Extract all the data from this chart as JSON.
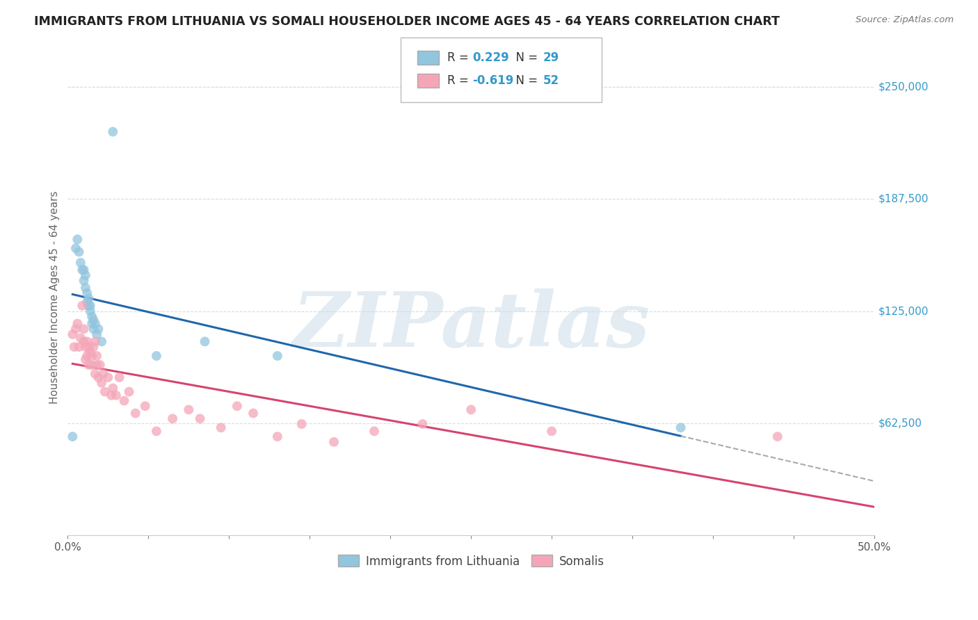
{
  "title": "IMMIGRANTS FROM LITHUANIA VS SOMALI HOUSEHOLDER INCOME AGES 45 - 64 YEARS CORRELATION CHART",
  "source": "Source: ZipAtlas.com",
  "ylabel": "Householder Income Ages 45 - 64 years",
  "xlim": [
    0.0,
    0.5
  ],
  "ylim": [
    0,
    265000
  ],
  "yticks": [
    0,
    62500,
    125000,
    187500,
    250000
  ],
  "ytick_labels": [
    "",
    "$62,500",
    "$125,000",
    "$187,500",
    "$250,000"
  ],
  "xticks": [
    0.0,
    0.05,
    0.1,
    0.15,
    0.2,
    0.25,
    0.3,
    0.35,
    0.4,
    0.45,
    0.5
  ],
  "xtick_labels": [
    "0.0%",
    "",
    "",
    "",
    "",
    "",
    "",
    "",
    "",
    "",
    "50.0%"
  ],
  "legend_label1": "Immigrants from Lithuania",
  "legend_label2": "Somalis",
  "blue_color": "#92c5de",
  "pink_color": "#f4a6b8",
  "line_blue": "#2166ac",
  "line_pink": "#d6446e",
  "line_dash_color": "#aaaaaa",
  "watermark": "ZIPatlas",
  "watermark_color": "#ccdde8",
  "legend_R1": "0.229",
  "legend_N1": "29",
  "legend_R2": "-0.619",
  "legend_N2": "52",
  "blue_points_x": [
    0.003,
    0.005,
    0.006,
    0.007,
    0.008,
    0.009,
    0.01,
    0.01,
    0.011,
    0.011,
    0.012,
    0.012,
    0.013,
    0.013,
    0.014,
    0.014,
    0.015,
    0.015,
    0.016,
    0.016,
    0.017,
    0.018,
    0.019,
    0.021,
    0.028,
    0.055,
    0.085,
    0.13,
    0.38
  ],
  "blue_points_y": [
    55000,
    160000,
    165000,
    158000,
    152000,
    148000,
    148000,
    142000,
    145000,
    138000,
    135000,
    130000,
    132000,
    128000,
    128000,
    125000,
    122000,
    118000,
    120000,
    115000,
    118000,
    112000,
    115000,
    108000,
    225000,
    100000,
    108000,
    100000,
    60000
  ],
  "pink_points_x": [
    0.003,
    0.004,
    0.005,
    0.006,
    0.007,
    0.008,
    0.009,
    0.01,
    0.01,
    0.011,
    0.011,
    0.012,
    0.012,
    0.013,
    0.013,
    0.014,
    0.015,
    0.015,
    0.016,
    0.017,
    0.017,
    0.018,
    0.018,
    0.019,
    0.02,
    0.021,
    0.022,
    0.023,
    0.025,
    0.027,
    0.028,
    0.03,
    0.032,
    0.035,
    0.038,
    0.042,
    0.048,
    0.055,
    0.065,
    0.075,
    0.082,
    0.095,
    0.105,
    0.115,
    0.13,
    0.145,
    0.165,
    0.19,
    0.22,
    0.25,
    0.3,
    0.44
  ],
  "pink_points_y": [
    112000,
    105000,
    115000,
    118000,
    105000,
    110000,
    128000,
    108000,
    115000,
    105000,
    98000,
    108000,
    100000,
    105000,
    95000,
    102000,
    100000,
    95000,
    105000,
    90000,
    108000,
    95000,
    100000,
    88000,
    95000,
    85000,
    90000,
    80000,
    88000,
    78000,
    82000,
    78000,
    88000,
    75000,
    80000,
    68000,
    72000,
    58000,
    65000,
    70000,
    65000,
    60000,
    72000,
    68000,
    55000,
    62000,
    52000,
    58000,
    62000,
    70000,
    58000,
    55000
  ],
  "blue_line_x0": 0.003,
  "blue_line_x_solid_end": 0.38,
  "blue_line_x1": 0.5,
  "pink_line_x0": 0.003,
  "pink_line_x1": 0.5,
  "background_color": "#ffffff",
  "grid_color": "#d0dfe8",
  "title_color": "#222222",
  "axis_label_color": "#666666",
  "tick_label_color": "#3399cc"
}
